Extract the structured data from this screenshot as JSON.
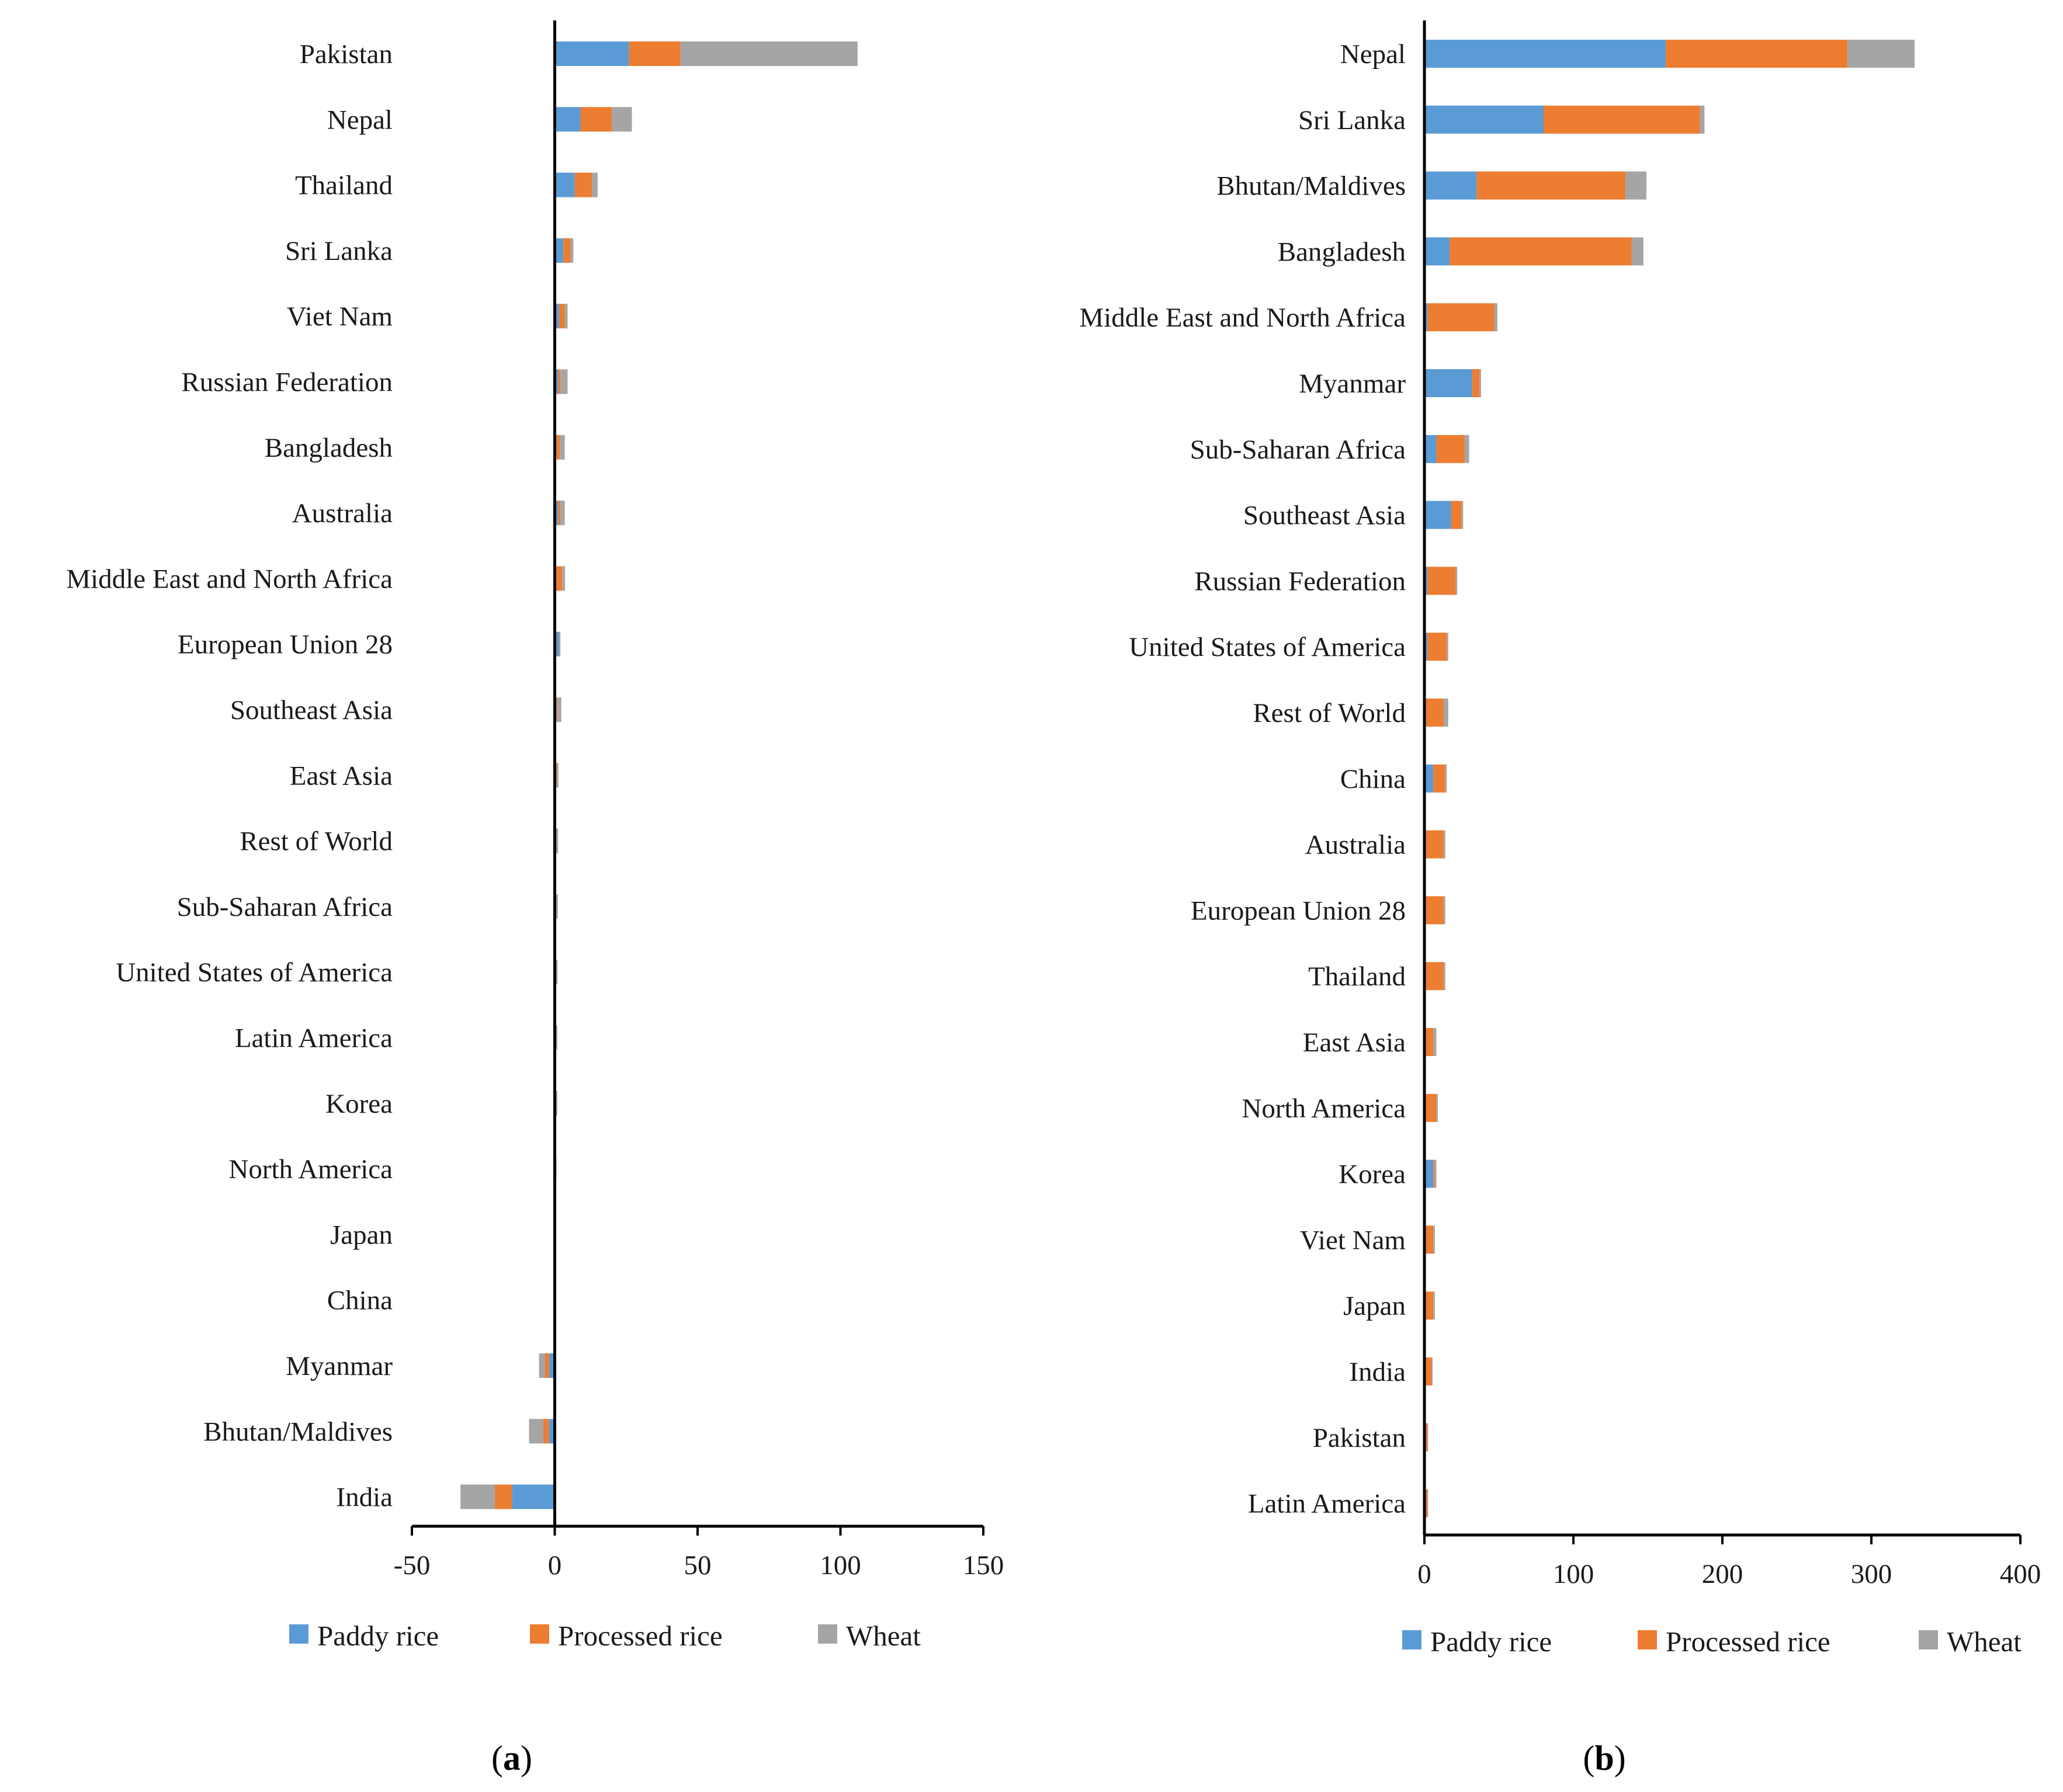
{
  "series_names": [
    "Paddy rice",
    "Processed rice",
    "Wheat"
  ],
  "colors": {
    "paddy": "#5b9bd5",
    "processed": "#ed7d31",
    "wheat": "#a5a5a5",
    "axis": "#000000"
  },
  "chart_data": [
    {
      "type": "bar",
      "orientation": "horizontal",
      "stacked": true,
      "panel_label": "(a)",
      "panel_letter": "a",
      "xlim": [
        -50,
        150
      ],
      "ticks": [
        -50,
        0,
        50,
        100,
        150
      ],
      "grid": false,
      "legend": "bottom",
      "categories": [
        "Pakistan",
        "Nepal",
        "Thailand",
        "Sri Lanka",
        "Viet Nam",
        "Russian Federation",
        "Bangladesh",
        "Australia",
        "Middle East and North Africa",
        "European Union 28",
        "Southeast Asia",
        "East Asia",
        "Rest of World",
        "Sub-Saharan Africa",
        "United States of America",
        "Latin America",
        "Korea",
        "North America",
        "Japan",
        "China",
        "Myanmar",
        "Bhutan/Maldives",
        "India"
      ],
      "series": [
        {
          "name": "Paddy rice",
          "values": [
            26,
            9,
            7,
            3,
            1.5,
            1.2,
            0.6,
            1.2,
            0.4,
            1.6,
            0.5,
            0.5,
            0.4,
            0.4,
            0.3,
            0.3,
            0.3,
            0.2,
            0.2,
            0.2,
            -2,
            -2,
            -15
          ]
        },
        {
          "name": "Processed rice",
          "values": [
            18,
            11,
            6,
            2.5,
            2,
            0.8,
            1.2,
            0.8,
            2.2,
            0.2,
            0.3,
            0.2,
            0.2,
            0.2,
            0.2,
            0.2,
            0.2,
            0.2,
            0.1,
            0.1,
            -1.5,
            -2,
            -6
          ]
        },
        {
          "name": "Wheat",
          "values": [
            62,
            7,
            2,
            1,
            1,
            2.5,
            1.7,
            1.5,
            1,
            0.2,
            1.5,
            0.6,
            0.6,
            0.5,
            0.5,
            0.4,
            0.4,
            0.2,
            0.2,
            0.2,
            -2,
            -5,
            -12
          ]
        }
      ]
    },
    {
      "type": "bar",
      "orientation": "horizontal",
      "stacked": true,
      "panel_label": "(b)",
      "panel_letter": "b",
      "xlim": [
        0,
        400
      ],
      "ticks": [
        0,
        100,
        200,
        300,
        400
      ],
      "grid": false,
      "legend": "bottom",
      "categories": [
        "Nepal",
        "Sri Lanka",
        "Bhutan/Maldives",
        "Bangladesh",
        "Middle East and North Africa",
        "Myanmar",
        "Sub-Saharan Africa",
        "Southeast Asia",
        "Russian Federation",
        "United States of America",
        "Rest of World",
        "China",
        "Australia",
        "European Union 28",
        "Thailand",
        "East Asia",
        "North America",
        "Korea",
        "Viet Nam",
        "Japan",
        "India",
        "Pakistan",
        "Latin America"
      ],
      "series": [
        {
          "name": "Paddy rice",
          "values": [
            162,
            80,
            35,
            17,
            2,
            32,
            8,
            18,
            2,
            2,
            1,
            6,
            1,
            1,
            1,
            1,
            1,
            6,
            1,
            1,
            1,
            1,
            1
          ]
        },
        {
          "name": "Processed rice",
          "values": [
            122,
            105,
            100,
            122,
            45,
            5,
            19,
            7,
            19,
            13,
            12,
            8,
            12,
            12,
            12,
            5,
            7,
            1,
            5,
            5,
            4,
            1,
            1
          ]
        },
        {
          "name": "Wheat",
          "values": [
            45,
            3,
            14,
            8,
            2,
            1,
            3,
            1,
            1,
            1,
            3,
            1,
            1,
            1,
            1,
            2,
            1,
            1,
            1,
            1,
            0.5,
            0.5,
            0.5
          ]
        }
      ]
    }
  ]
}
